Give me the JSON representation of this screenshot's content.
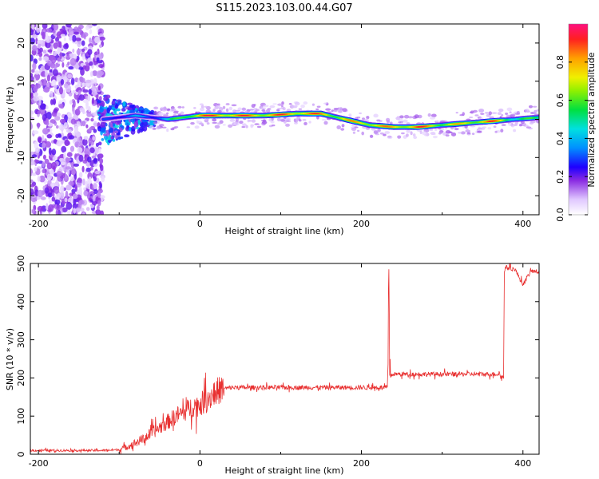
{
  "title": "S115.2023.103.00.44.G07",
  "chart_data": [
    {
      "type": "heatmap",
      "name": "spectrogram",
      "xlabel": "Height of straight line (km)",
      "ylabel": "Frequency (Hz)",
      "xlim": [
        -210,
        420
      ],
      "ylim": [
        -25,
        25
      ],
      "xticks": [
        -200,
        0,
        200,
        400
      ],
      "yticks": [
        -20,
        -10,
        0,
        10,
        20
      ],
      "colorbar": {
        "label": "Normalized spectral amplitude",
        "range": [
          0,
          1
        ],
        "ticks": [
          0.0,
          0.2,
          0.4,
          0.6,
          0.8
        ]
      },
      "noise_region": {
        "x_range": [
          -210,
          -120
        ],
        "freq_range": [
          -25,
          25
        ],
        "amplitude": 0.2
      },
      "ridge": {
        "x": [
          -120,
          -100,
          -80,
          -60,
          -40,
          -20,
          0,
          40,
          80,
          120,
          150,
          170,
          190,
          210,
          240,
          270,
          300,
          330,
          360,
          390,
          420
        ],
        "freq": [
          0,
          0.5,
          1,
          0.5,
          0,
          0.5,
          1,
          1,
          1,
          1.5,
          1.5,
          0.5,
          -0.5,
          -1.5,
          -2,
          -2,
          -1.5,
          -1,
          -0.5,
          0,
          0.5
        ],
        "amplitude": [
          0.3,
          0.35,
          0.4,
          0.35,
          0.5,
          0.7,
          0.95,
          0.95,
          0.9,
          0.95,
          0.9,
          0.8,
          0.85,
          0.9,
          0.85,
          0.95,
          0.8,
          0.8,
          0.95,
          0.6,
          0.6
        ]
      }
    },
    {
      "type": "line",
      "name": "snr",
      "xlabel": "Height of straight line (km)",
      "ylabel": "SNR (10 * v/v)",
      "xlim": [
        -210,
        420
      ],
      "ylim": [
        0,
        500
      ],
      "xticks": [
        -200,
        0,
        200,
        400
      ],
      "yticks": [
        0,
        100,
        200,
        300,
        400,
        500
      ],
      "series": [
        {
          "name": "SNR",
          "color": "#e83030",
          "x": [
            -210,
            -180,
            -150,
            -120,
            -100,
            -90,
            -80,
            -70,
            -60,
            -50,
            -40,
            -30,
            -20,
            -10,
            0,
            10,
            20,
            30,
            40,
            60,
            100,
            150,
            200,
            232,
            233,
            234,
            235,
            236,
            237,
            240,
            300,
            370,
            376,
            377,
            378,
            390,
            400,
            410,
            420
          ],
          "y": [
            10,
            10,
            10,
            10,
            12,
            20,
            30,
            40,
            55,
            70,
            85,
            100,
            110,
            125,
            130,
            145,
            165,
            172,
            175,
            175,
            175,
            175,
            175,
            175,
            230,
            480,
            220,
            205,
            208,
            210,
            210,
            210,
            200,
            480,
            490,
            485,
            445,
            480,
            478
          ]
        }
      ]
    }
  ],
  "colors": {
    "line": "#e83030",
    "axis": "#000000",
    "background": "#ffffff"
  }
}
